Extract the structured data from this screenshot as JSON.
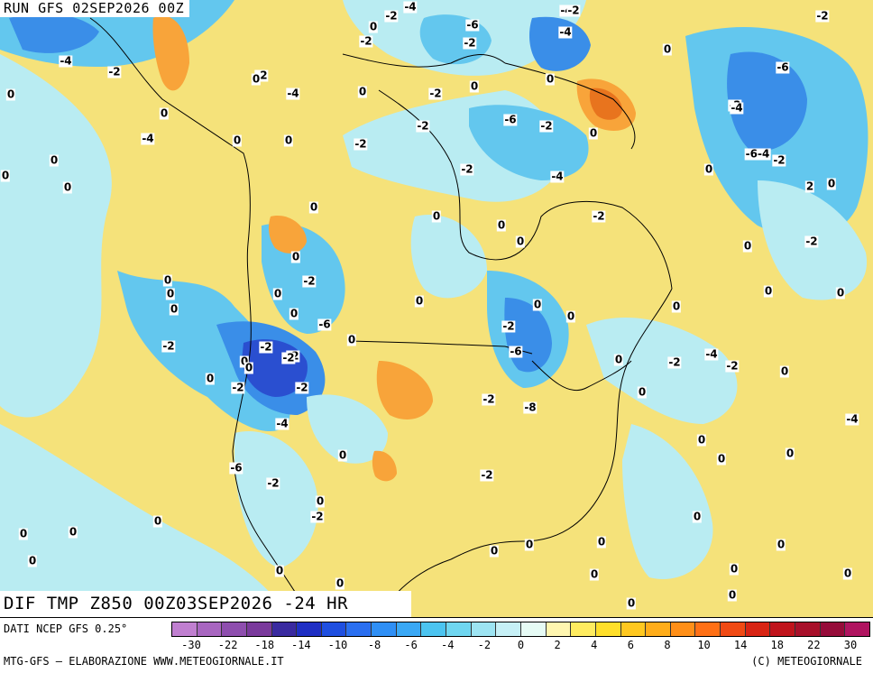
{
  "header": {
    "run_label": "RUN GFS 02SEP2026 00Z",
    "product_title": "DIF TMP Z850 00Z03SEP2026 -24 HR"
  },
  "footer": {
    "data_source": "DATI NCEP GFS 0.25°",
    "credits_left": "MTG-GFS – ELABORAZIONE WWW.METEOGIORNALE.IT",
    "credits_right": "(C) METEOGIORNALE"
  },
  "legend": {
    "colors": [
      "#c07fd0",
      "#a866c0",
      "#8e4eae",
      "#7a3a9c",
      "#3a2aa0",
      "#1f2fc4",
      "#1f4fe0",
      "#2a6ff0",
      "#2f8ff5",
      "#3aa8f5",
      "#4cc4f0",
      "#6fd6f0",
      "#9de4f2",
      "#c6f0f6",
      "#e6fbf5",
      "#fff6b0",
      "#ffec60",
      "#ffdf2a",
      "#ffc820",
      "#ffad1a",
      "#ff8f18",
      "#ff7016",
      "#f04a14",
      "#d82414",
      "#c0141c",
      "#a8102a",
      "#960c3a",
      "#b01460"
    ],
    "tick_labels": [
      "-30",
      "-22",
      "-18",
      "-14",
      "-10",
      "-8",
      "-6",
      "-4",
      "-2",
      "0",
      "2",
      "4",
      "6",
      "8",
      "10",
      "14",
      "18",
      "22",
      "30"
    ]
  },
  "contour_labels": [
    "-4",
    "-2",
    "-4",
    "-2",
    "-2",
    "0",
    "-6",
    "-2",
    "-2",
    "-4",
    "-4",
    "0",
    "-2",
    "-6",
    "-4",
    "-2",
    "0",
    "0",
    "0",
    "-2",
    "0",
    "-2",
    "0",
    "-6",
    "-2",
    "0",
    "0",
    "-4",
    "-4",
    "0",
    "0",
    "-2",
    "-2",
    "-2",
    "-4",
    "0",
    "0",
    "0",
    "0",
    "-6-4",
    "-2",
    "2",
    "0",
    "0",
    "-2",
    "0",
    "0",
    "-2",
    "0",
    "0",
    "0",
    "0",
    "0",
    "0",
    "0",
    "0",
    "0",
    "0",
    "0",
    "0",
    "-2",
    "0",
    "0",
    "-2",
    "-6",
    "0",
    "-2",
    "-2",
    "-2",
    "0",
    "0",
    "-6",
    "-2",
    "-2",
    "0",
    "-2",
    "-4",
    "-2",
    "0",
    "0",
    "-2",
    "-4",
    "0",
    "-4",
    "-8",
    "-2",
    "-2",
    "0",
    "0",
    "0",
    "0",
    "-6",
    "-2",
    "0",
    "-2",
    "0",
    "0",
    "0",
    "0",
    "0",
    "0",
    "0",
    "0",
    "0",
    "0",
    "0",
    "0",
    "0",
    "0",
    "0",
    "0",
    "0",
    "0",
    "0",
    "0",
    "0",
    "0",
    "0",
    "0",
    "0",
    "0",
    "0",
    "0",
    "0",
    "0",
    "0",
    "0",
    "0",
    "0",
    "0",
    "0",
    "0"
  ],
  "map_colors": {
    "base_yellow": "#f5e27a",
    "pale_cyan": "#b9ecf2",
    "light_blue": "#63c7ee",
    "blue": "#3a8ee8",
    "deep_blue": "#2a4fd0",
    "orange": "#f8a43a",
    "deep_orange": "#e8741e",
    "boundary": "#000000"
  }
}
